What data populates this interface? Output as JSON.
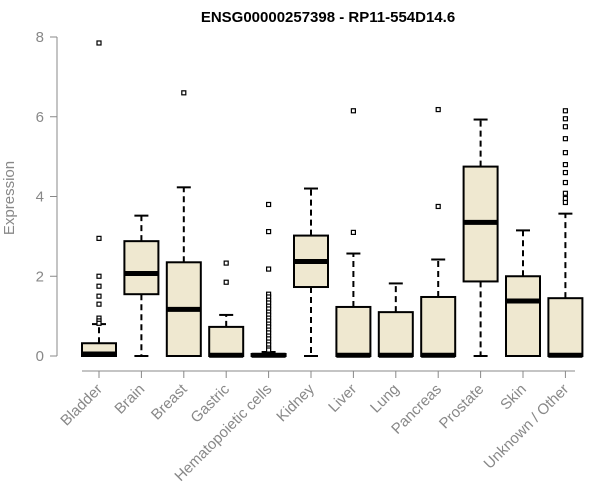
{
  "chart_data": {
    "type": "boxplot",
    "title": "ENSG00000257398 - RP11-554D14.6",
    "xlabel": "",
    "ylabel": "Expression",
    "ylim": [
      0,
      8
    ],
    "yticks": [
      0,
      2,
      4,
      6,
      8
    ],
    "grid": false,
    "box_fill": "#efe8d0",
    "categories": [
      "Bladder",
      "Brain",
      "Breast",
      "Gastric",
      "Hematopoietic cells",
      "Kidney",
      "Liver",
      "Lung",
      "Pancreas",
      "Prostate",
      "Skin",
      "Unknown / Other"
    ],
    "boxes": [
      {
        "whisker_low": 0,
        "q1": 0,
        "median": 0.05,
        "q3": 0.32,
        "whisker_high": 0.8,
        "outliers": [
          7.85,
          2.95,
          2.0,
          1.75,
          1.5,
          1.3,
          0.95,
          0.88,
          0.82
        ]
      },
      {
        "whisker_low": 0,
        "q1": 1.55,
        "median": 2.07,
        "q3": 2.88,
        "whisker_high": 3.52,
        "outliers": []
      },
      {
        "whisker_low": 0,
        "q1": 0,
        "median": 1.17,
        "q3": 2.35,
        "whisker_high": 4.23,
        "outliers": [
          6.6
        ]
      },
      {
        "whisker_low": 0,
        "q1": 0,
        "median": 0.02,
        "q3": 0.73,
        "whisker_high": 1.03,
        "outliers": [
          2.33,
          1.85
        ]
      },
      {
        "whisker_low": 0,
        "q1": 0,
        "median": 0.02,
        "q3": 0.05,
        "whisker_high": 0.1,
        "outliers": [
          3.8,
          3.12,
          2.18,
          1.55,
          1.48,
          1.4,
          1.33,
          1.25,
          1.18,
          1.1,
          1.03,
          0.95,
          0.88,
          0.8,
          0.73,
          0.65,
          0.58,
          0.5,
          0.43,
          0.35,
          0.28,
          0.2,
          0.15
        ]
      },
      {
        "whisker_low": 0,
        "q1": 1.73,
        "median": 2.37,
        "q3": 3.02,
        "whisker_high": 4.2,
        "outliers": []
      },
      {
        "whisker_low": 0,
        "q1": 0,
        "median": 0.02,
        "q3": 1.23,
        "whisker_high": 2.57,
        "outliers": [
          6.15,
          3.1
        ]
      },
      {
        "whisker_low": 0,
        "q1": 0,
        "median": 0.02,
        "q3": 1.1,
        "whisker_high": 1.82,
        "outliers": []
      },
      {
        "whisker_low": 0,
        "q1": 0,
        "median": 0.02,
        "q3": 1.48,
        "whisker_high": 2.42,
        "outliers": [
          6.18,
          3.75
        ]
      },
      {
        "whisker_low": 0,
        "q1": 1.87,
        "median": 3.35,
        "q3": 4.75,
        "whisker_high": 5.93,
        "outliers": []
      },
      {
        "whisker_low": 0,
        "q1": 0,
        "median": 1.38,
        "q3": 2.0,
        "whisker_high": 3.15,
        "outliers": []
      },
      {
        "whisker_low": 0,
        "q1": 0,
        "median": 0.02,
        "q3": 1.45,
        "whisker_high": 3.57,
        "outliers": [
          6.15,
          5.95,
          5.75,
          5.45,
          5.1,
          4.8,
          4.6,
          4.35,
          4.08,
          3.95,
          3.85
        ]
      }
    ]
  }
}
